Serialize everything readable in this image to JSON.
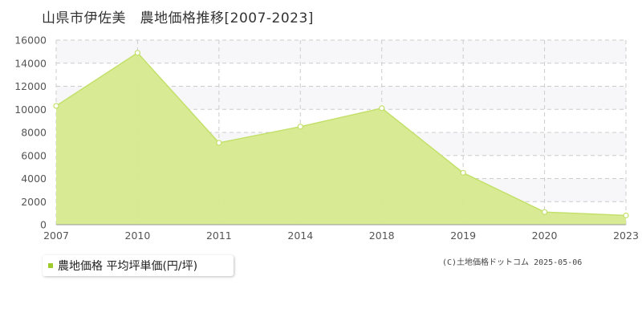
{
  "title": "山県市伊佐美　農地価格推移[2007-2023]",
  "legend": {
    "label": "農地価格 平均坪単価(円/坪)"
  },
  "credit": "(C)土地価格ドットコム 2025-05-06",
  "colors": {
    "area_fill": "#d6ea8e",
    "line": "#c3e06a",
    "marker_fill": "#ffffff",
    "legend_swatch": "#9ecb2b",
    "grid": "#cccccc",
    "band": "#f7f7f9"
  },
  "chart_data": {
    "type": "area",
    "categories": [
      "2007",
      "2010",
      "2011",
      "2014",
      "2018",
      "2019",
      "2020",
      "2023"
    ],
    "series": [
      {
        "name": "農地価格 平均坪単価(円/坪)",
        "values": [
          10300,
          14900,
          7100,
          8500,
          10100,
          4500,
          1100,
          800
        ]
      }
    ],
    "ylim": [
      0,
      16000
    ],
    "yticks": [
      0,
      2000,
      4000,
      6000,
      8000,
      10000,
      12000,
      14000,
      16000
    ],
    "grid": true,
    "legend_position": "bottom-left"
  }
}
